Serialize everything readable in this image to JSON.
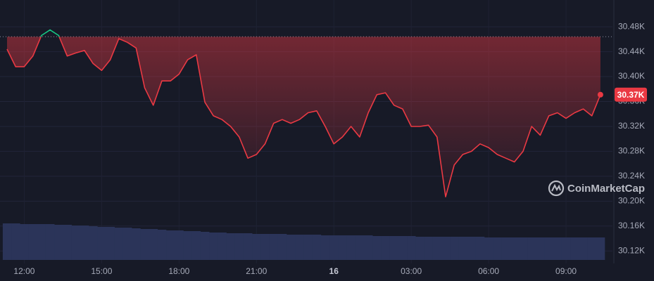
{
  "chart_data": {
    "type": "line",
    "watermark": "CoinMarketCap",
    "current_price_label": "30.37K",
    "baseline": 30464,
    "up_color": "#16c784",
    "down_color": "#ea3943",
    "volume_color": "#2b3459",
    "grid": true,
    "xlim": [
      -0.82,
      70.4
    ],
    "ylim": [
      30100,
      30523
    ],
    "xticks": [
      {
        "value": 2,
        "label": "12:00"
      },
      {
        "value": 11,
        "label": "15:00"
      },
      {
        "value": 20,
        "label": "18:00"
      },
      {
        "value": 29,
        "label": "21:00"
      },
      {
        "value": 38,
        "label": "16"
      },
      {
        "value": 47,
        "label": "03:00"
      },
      {
        "value": 56,
        "label": "06:00"
      },
      {
        "value": 65,
        "label": "09:00"
      }
    ],
    "yticks": [
      {
        "value": 30120,
        "label": "30.12K"
      },
      {
        "value": 30160,
        "label": "30.16K"
      },
      {
        "value": 30200,
        "label": "30.20K"
      },
      {
        "value": 30240,
        "label": "30.24K"
      },
      {
        "value": 30280,
        "label": "30.28K"
      },
      {
        "value": 30320,
        "label": "30.32K"
      },
      {
        "value": 30360,
        "label": "30.36K"
      },
      {
        "value": 30400,
        "label": "30.40K"
      },
      {
        "value": 30440,
        "label": "30.44K"
      },
      {
        "value": 30480,
        "label": "30.48K"
      }
    ],
    "values": [
      30444,
      30416,
      30416,
      30433,
      30466,
      30475,
      30466,
      30433,
      30438,
      30442,
      30421,
      30410,
      30427,
      30461,
      30455,
      30446,
      30382,
      30354,
      30393,
      30393,
      30404,
      30427,
      30435,
      30359,
      30337,
      30331,
      30320,
      30303,
      30269,
      30275,
      30292,
      30325,
      30331,
      30325,
      30331,
      30342,
      30345,
      30320,
      30292,
      30303,
      30320,
      30303,
      30342,
      30371,
      30374,
      30354,
      30348,
      30320,
      30320,
      30322,
      30303,
      30207,
      30258,
      30275,
      30280,
      30292,
      30286,
      30275,
      30269,
      30263,
      30280,
      30320,
      30306,
      30337,
      30342,
      30333,
      30342,
      30348,
      30337,
      30371
    ],
    "volume": [
      52,
      52,
      51,
      51,
      51,
      51,
      50,
      50,
      49,
      49,
      48,
      47,
      47,
      46,
      46,
      45,
      44,
      44,
      43,
      42,
      42,
      41,
      41,
      40,
      39,
      39,
      38,
      38,
      38,
      37,
      37,
      37,
      37,
      36,
      36,
      36,
      36,
      35,
      35,
      35,
      35,
      35,
      35,
      34,
      34,
      34,
      34,
      34,
      33,
      33,
      33,
      33,
      33,
      33,
      33,
      33,
      32,
      32,
      32,
      32,
      32,
      32,
      32,
      32,
      32,
      32,
      32,
      32,
      32,
      32
    ]
  }
}
